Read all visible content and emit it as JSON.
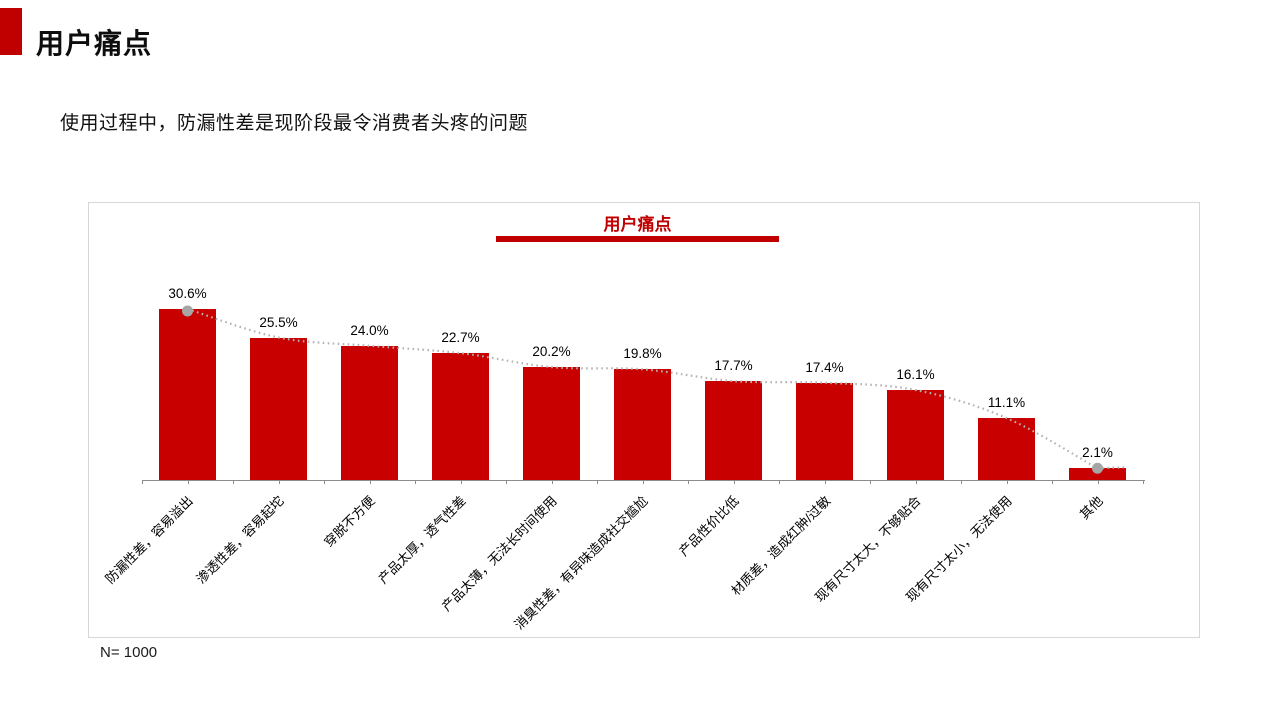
{
  "slide": {
    "title": "用户痛点",
    "subtitle": "使用过程中，防漏性差是现阶段最令消费者头疼的问题",
    "footnote": "N= 1000",
    "accent_color": "#C00000"
  },
  "chart_data": {
    "type": "bar",
    "title": "用户痛点",
    "categories": [
      "防漏性差，容易溢出",
      "渗透性差，容易起坨",
      "穿脱不方便",
      "产品太厚，透气性差",
      "产品太薄，无法长时间使用",
      "消臭性差，有异味造成社交尴尬",
      "产品性价比低",
      "材质差，造成红肿/过敏",
      "现有尺寸太大，不够贴合",
      "现有尺寸太小，无法使用",
      "其他"
    ],
    "values": [
      30.6,
      25.5,
      24.0,
      22.7,
      20.2,
      19.8,
      17.7,
      17.4,
      16.1,
      11.1,
      2.1
    ],
    "value_labels": [
      "30.6%",
      "25.5%",
      "24.0%",
      "22.7%",
      "20.2%",
      "19.8%",
      "17.7%",
      "17.4%",
      "16.1%",
      "11.1%",
      "2.1%"
    ],
    "overlay_line": {
      "type": "line",
      "smoothed": true,
      "values": [
        30.6,
        25.5,
        24.0,
        22.7,
        20.2,
        19.8,
        17.7,
        17.4,
        16.1,
        11.1,
        2.1
      ],
      "markers": "first-and-last-point"
    },
    "xlabel": "",
    "ylabel": "",
    "grid": false,
    "legend": "none",
    "bar_color": "#C80000",
    "line_color": "#b3b3b3",
    "marker_color": "#a6a6a6",
    "axis_color": "#8c8c8c"
  }
}
